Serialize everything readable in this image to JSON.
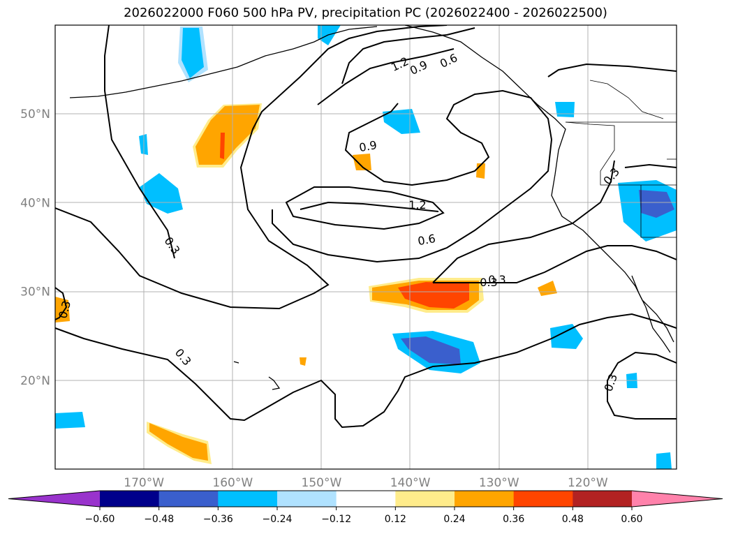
{
  "title": "2026022000 F060 500 hPa PV, precipitation PC (2026022400 - 2026022500)",
  "map": {
    "lon_range": [
      -180,
      -110
    ],
    "lat_range": [
      10,
      60
    ],
    "lon_ticks": [
      {
        "lon": -170,
        "label": "170°W"
      },
      {
        "lon": -160,
        "label": "160°W"
      },
      {
        "lon": -150,
        "label": "150°W"
      },
      {
        "lon": -140,
        "label": "140°W"
      },
      {
        "lon": -130,
        "label": "130°W"
      },
      {
        "lon": -120,
        "label": "120°W"
      }
    ],
    "lat_ticks": [
      {
        "lat": 20,
        "label": "20°N"
      },
      {
        "lat": 30,
        "label": "30°N"
      },
      {
        "lat": 40,
        "label": "40°N"
      },
      {
        "lat": 50,
        "label": "50°N"
      }
    ],
    "contour_labels": [
      "1.2",
      "0.9",
      "0.6",
      "0.3",
      "0.9",
      "1.2",
      "0.6",
      "0.3",
      "0.3",
      "0.3",
      "0.3",
      "0.3",
      "0.3"
    ],
    "gridlines": true
  },
  "colorbar": {
    "colors": [
      "#9933cc",
      "#00008b",
      "#3a5fcd",
      "#00bfff",
      "#b0e2ff",
      "#ffffff",
      "#ffec8b",
      "#ffa500",
      "#ff4500",
      "#b22222",
      "#ff82ab"
    ],
    "ticks": [
      "−0.60",
      "−0.48",
      "−0.36",
      "−0.24",
      "−0.12",
      "0.12",
      "0.24",
      "0.36",
      "0.48",
      "0.60"
    ],
    "extend": "both"
  }
}
